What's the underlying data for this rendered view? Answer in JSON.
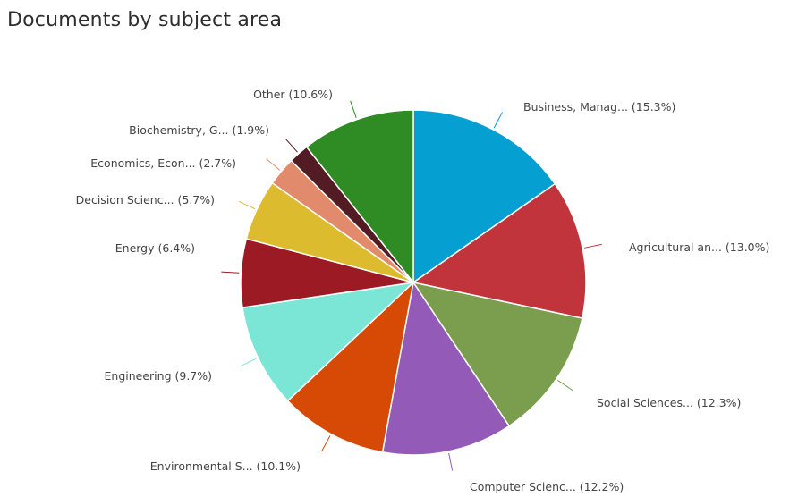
{
  "chart_data": {
    "type": "pie",
    "title": "Documents by subject area",
    "slices": [
      {
        "label": "Business, Manag... (15.3%)",
        "value": 15.3,
        "color": "#069fd2"
      },
      {
        "label": "Agricultural an... (13.0%)",
        "value": 13.0,
        "color": "#c2343c"
      },
      {
        "label": "Social Sciences... (12.3%)",
        "value": 12.3,
        "color": "#7b9e4e"
      },
      {
        "label": "Computer Scienc... (12.2%)",
        "value": 12.2,
        "color": "#935ab8"
      },
      {
        "label": "Environmental S... (10.1%)",
        "value": 10.1,
        "color": "#d64a06"
      },
      {
        "label": "Engineering (9.7%)",
        "value": 9.7,
        "color": "#7be6d6"
      },
      {
        "label": "Energy (6.4%)",
        "value": 6.4,
        "color": "#9b1a24"
      },
      {
        "label": "Decision Scienc... (5.7%)",
        "value": 5.7,
        "color": "#dcbb2e"
      },
      {
        "label": "Economics, Econ... (2.7%)",
        "value": 2.7,
        "color": "#e28b6c"
      },
      {
        "label": "Biochemistry, G... (1.9%)",
        "value": 1.9,
        "color": "#531b24"
      },
      {
        "label": "Other (10.6%)",
        "value": 10.6,
        "color": "#2f8c25"
      }
    ]
  }
}
